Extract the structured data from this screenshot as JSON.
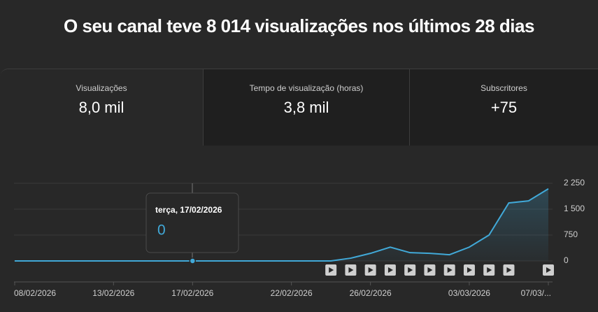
{
  "header": {
    "title": "O seu canal teve 8 014 visualizações nos últimos 28 dias"
  },
  "metrics": [
    {
      "label": "Visualizações",
      "value": "8,0 mil"
    },
    {
      "label": "Tempo de visualização (horas)",
      "value": "3,8 mil"
    },
    {
      "label": "Subscritores",
      "value": "+75"
    }
  ],
  "chart_data": {
    "type": "line",
    "categories": [
      "08/02/2026",
      null,
      null,
      null,
      null,
      "13/02/2026",
      null,
      null,
      null,
      "17/02/2026",
      null,
      null,
      null,
      null,
      "22/02/2026",
      null,
      null,
      null,
      "26/02/2026",
      null,
      null,
      null,
      null,
      "03/03/2026",
      null,
      null,
      null,
      "07/03/..."
    ],
    "series": [
      {
        "name": "Visualizações",
        "color": "#41a9d8",
        "values": [
          0,
          0,
          0,
          0,
          0,
          0,
          0,
          0,
          0,
          0,
          0,
          0,
          0,
          0,
          0,
          0,
          0,
          80,
          220,
          400,
          240,
          220,
          180,
          400,
          750,
          1680,
          1740,
          2090
        ]
      }
    ],
    "ylim": [
      0,
      2250
    ],
    "yticks": [
      0,
      750,
      {
        "value": 1500,
        "label": "1 500"
      },
      {
        "value": 2250,
        "label": "2 250"
      }
    ],
    "grid": true,
    "tooltip": {
      "title": "terça, 17/02/2026",
      "value": 0
    }
  }
}
